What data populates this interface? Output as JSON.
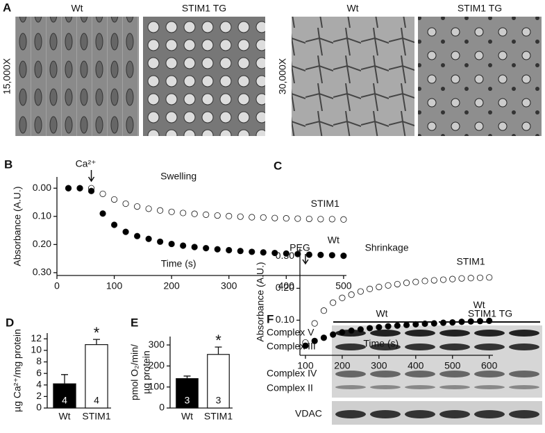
{
  "panel_a": {
    "label": "A",
    "rows": [
      {
        "magnification": "15,000X",
        "captions": [
          "Wt",
          "STIM1 TG"
        ]
      },
      {
        "magnification": "30,000X",
        "captions": [
          "Wt",
          "STIM1 TG"
        ]
      }
    ]
  },
  "chart_data": [
    {
      "type": "scatter",
      "panel_label": "B",
      "title": "Swelling",
      "annotation": "Ca²⁺",
      "x_label": "Time (s)",
      "y_label": "Absorbance (A.U.)",
      "xlim": [
        0,
        505
      ],
      "xticks": [
        0,
        100,
        200,
        300,
        400,
        500
      ],
      "ylim": [
        -0.04,
        0.31
      ],
      "y_inverted": true,
      "yticks": [
        {
          "value": 0,
          "label": "0.00"
        },
        {
          "value": 0.1,
          "label": "0.10"
        },
        {
          "value": 0.2,
          "label": "0.20"
        },
        {
          "value": 0.3,
          "label": "0.30"
        }
      ],
      "x": [
        20,
        40,
        60,
        80,
        100,
        120,
        140,
        160,
        180,
        200,
        220,
        240,
        260,
        280,
        300,
        320,
        340,
        360,
        380,
        400,
        420,
        440,
        460,
        480,
        500
      ],
      "series": [
        {
          "name": "STIM1",
          "color": "#ffffff",
          "values": [
            0,
            0,
            0,
            0.02,
            0.04,
            0.055,
            0.065,
            0.073,
            0.079,
            0.084,
            0.088,
            0.091,
            0.094,
            0.097,
            0.099,
            0.101,
            0.103,
            0.104,
            0.106,
            0.107,
            0.108,
            0.109,
            0.11,
            0.11,
            0.111
          ]
        },
        {
          "name": "Wt",
          "color": "#000000",
          "values": [
            0,
            0,
            0.01,
            0.09,
            0.13,
            0.155,
            0.17,
            0.18,
            0.19,
            0.198,
            0.204,
            0.209,
            0.213,
            0.217,
            0.22,
            0.223,
            0.226,
            0.228,
            0.23,
            0.232,
            0.234,
            0.236,
            0.237,
            0.238,
            0.24
          ]
        }
      ]
    },
    {
      "type": "scatter",
      "panel_label": "C",
      "title": "Shrinkage",
      "annotation": "PEG",
      "x_label": "Time (s)",
      "y_label": "Absorbance (A.U.)",
      "xlim": [
        85,
        610
      ],
      "xticks": [
        100,
        200,
        300,
        400,
        500,
        600
      ],
      "ylim": [
        -0.01,
        0.325
      ],
      "yticks": [
        {
          "value": 0.1,
          "label": "0.10"
        },
        {
          "value": 0.2,
          "label": "0.20"
        },
        {
          "value": 0.3,
          "label": "0.30"
        }
      ],
      "x": [
        100,
        125,
        150,
        175,
        200,
        225,
        250,
        275,
        300,
        325,
        350,
        375,
        400,
        425,
        450,
        475,
        500,
        525,
        550,
        575,
        600
      ],
      "series": [
        {
          "name": "STIM1",
          "color": "#ffffff",
          "values": [
            0.03,
            0.09,
            0.13,
            0.155,
            0.17,
            0.18,
            0.19,
            0.198,
            0.204,
            0.209,
            0.213,
            0.217,
            0.22,
            0.223,
            0.225,
            0.227,
            0.229,
            0.231,
            0.232,
            0.233,
            0.234
          ]
        },
        {
          "name": "Wt",
          "color": "#000000",
          "values": [
            0.02,
            0.035,
            0.045,
            0.055,
            0.062,
            0.067,
            0.071,
            0.075,
            0.078,
            0.081,
            0.083,
            0.085,
            0.087,
            0.089,
            0.09,
            0.092,
            0.093,
            0.095,
            0.096,
            0.097,
            0.098
          ]
        }
      ]
    },
    {
      "type": "bar",
      "panel_label": "D",
      "y_label": "µg Ca²⁺/mg protein",
      "categories": [
        "Wt",
        "STIM1"
      ],
      "values": [
        4.2,
        11.0
      ],
      "errors": [
        1.6,
        0.9
      ],
      "colors": [
        "#000000",
        "#ffffff"
      ],
      "n_labels": [
        "4",
        "4"
      ],
      "significance": "*",
      "ylim": [
        0,
        13
      ],
      "yticks": [
        0,
        2,
        4,
        6,
        8,
        10,
        12
      ]
    },
    {
      "type": "bar",
      "panel_label": "E",
      "y_label": [
        "pmol O₂/min/",
        "µg protein"
      ],
      "categories": [
        "Wt",
        "STIM1"
      ],
      "values": [
        140,
        255
      ],
      "errors": [
        12,
        35
      ],
      "colors": [
        "#000000",
        "#ffffff"
      ],
      "n_labels": [
        "3",
        "3"
      ],
      "significance": "*",
      "ylim": [
        0,
        340
      ],
      "yticks": [
        0,
        100,
        200,
        300
      ]
    }
  ],
  "panel_f": {
    "label": "F",
    "groups": [
      "Wt",
      "STIM1 TG"
    ],
    "bands": [
      "Complex V",
      "Complex III",
      "Complex IV",
      "Complex II",
      "VDAC"
    ]
  }
}
